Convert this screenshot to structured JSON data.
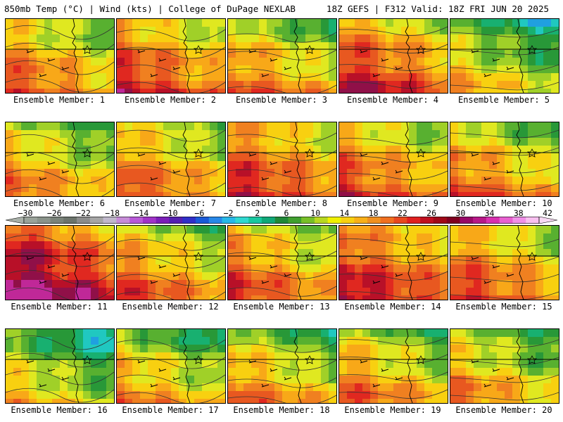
{
  "header": {
    "left": "850mb Temp (°C) | Wind (kts) | College of DuPage NEXLAB",
    "right": "18Z GEFS | F312 Valid: 18Z FRI JUN 20 2025"
  },
  "colorbar": {
    "labels": [
      "−30",
      "−26",
      "−22",
      "−18",
      "−14",
      "−10",
      "−6",
      "−2",
      "2",
      "6",
      "10",
      "14",
      "18",
      "22",
      "26",
      "30",
      "34",
      "38",
      "42"
    ],
    "colors": [
      "#9aa39a",
      "#8a938a",
      "#7a837a",
      "#6c746c",
      "#8c8c8c",
      "#a6a6a6",
      "#c0b8cc",
      "#c68cd8",
      "#b85ad8",
      "#a034c8",
      "#7b1fb8",
      "#5420b0",
      "#3030c8",
      "#1a5ad8",
      "#2888e8",
      "#28b8e8",
      "#30d8d0",
      "#18c8a0",
      "#10a878",
      "#208838",
      "#40a030",
      "#78c028",
      "#b8d820",
      "#f0f000",
      "#f8d010",
      "#f8b018",
      "#f09020",
      "#f07020",
      "#e84820",
      "#e02020",
      "#c01020",
      "#a00818",
      "#800020",
      "#980868",
      "#b81888",
      "#d830b0",
      "#e860d0",
      "#f090e8",
      "#f8c0f0"
    ]
  },
  "members": [
    {
      "label": "Ensemble Member: 1",
      "temp": 0.55
    },
    {
      "label": "Ensemble Member: 2",
      "temp": 0.62
    },
    {
      "label": "Ensemble Member: 3",
      "temp": 0.52
    },
    {
      "label": "Ensemble Member: 4",
      "temp": 0.66
    },
    {
      "label": "Ensemble Member: 5",
      "temp": 0.4
    },
    {
      "label": "Ensemble Member: 6",
      "temp": 0.5
    },
    {
      "label": "Ensemble Member: 7",
      "temp": 0.56
    },
    {
      "label": "Ensemble Member: 8",
      "temp": 0.64
    },
    {
      "label": "Ensemble Member: 9",
      "temp": 0.58
    },
    {
      "label": "Ensemble Member: 10",
      "temp": 0.54
    },
    {
      "label": "Ensemble Member: 11",
      "temp": 0.8
    },
    {
      "label": "Ensemble Member: 12",
      "temp": 0.56
    },
    {
      "label": "Ensemble Member: 13",
      "temp": 0.58
    },
    {
      "label": "Ensemble Member: 14",
      "temp": 0.68
    },
    {
      "label": "Ensemble Member: 15",
      "temp": 0.6
    },
    {
      "label": "Ensemble Member: 16",
      "temp": 0.38
    },
    {
      "label": "Ensemble Member: 17",
      "temp": 0.46
    },
    {
      "label": "Ensemble Member: 18",
      "temp": 0.5
    },
    {
      "label": "Ensemble Member: 19",
      "temp": 0.52
    },
    {
      "label": "Ensemble Member: 20",
      "temp": 0.48
    }
  ]
}
